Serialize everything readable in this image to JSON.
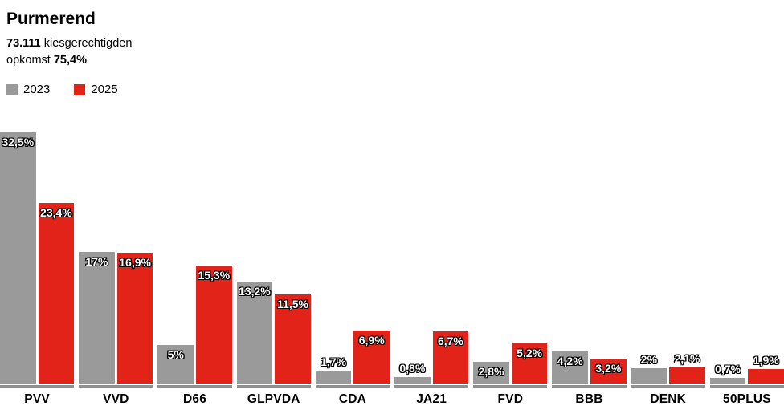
{
  "header": {
    "title": "Purmerend",
    "electorate_value": "73.111",
    "electorate_label": " kiesgerechtigden",
    "turnout_label": "opkomst ",
    "turnout_value": "75,4%"
  },
  "legend": {
    "items": [
      {
        "label": "2023",
        "color": "#9a9a9a"
      },
      {
        "label": "2025",
        "color": "#e2231a"
      }
    ]
  },
  "colors": {
    "bar_2023": "#9a9a9a",
    "bar_2025": "#e2231a",
    "baseline": "#8f8f8f",
    "value_label_text": "#ffffff",
    "value_label_outline": "#000000",
    "text": "#000000",
    "background": "#ffffff"
  },
  "chart_data": {
    "type": "bar",
    "title": "Purmerend",
    "subtitle": "73.111 kiesgerechtigden, opkomst 75,4%",
    "categories": [
      "PVV",
      "VVD",
      "D66",
      "GLPVDA",
      "CDA",
      "JA21",
      "FVD",
      "BBB",
      "DENK",
      "50PLUS"
    ],
    "series": [
      {
        "name": "2023",
        "color": "#9a9a9a",
        "values": [
          32.5,
          17,
          5,
          13.2,
          1.7,
          0.8,
          2.8,
          4.2,
          2,
          0.7
        ],
        "labels": [
          "32,5%",
          "17%",
          "5%",
          "13,2%",
          "1,7%",
          "0,8%",
          "2,8%",
          "4,2%",
          "2%",
          "0,7%"
        ]
      },
      {
        "name": "2025",
        "color": "#e2231a",
        "values": [
          23.4,
          16.9,
          15.3,
          11.5,
          6.9,
          6.7,
          5.2,
          3.2,
          2.1,
          1.9
        ],
        "labels": [
          "23,4%",
          "16,9%",
          "15,3%",
          "11,5%",
          "6,9%",
          "6,7%",
          "5,2%",
          "3,2%",
          "2,1%",
          "1,9%"
        ]
      }
    ],
    "xlabel": "",
    "ylabel": "",
    "ylim": [
      0,
      32.5
    ],
    "grid": false,
    "legend_position": "top-left",
    "value_labels": "on-bars"
  }
}
